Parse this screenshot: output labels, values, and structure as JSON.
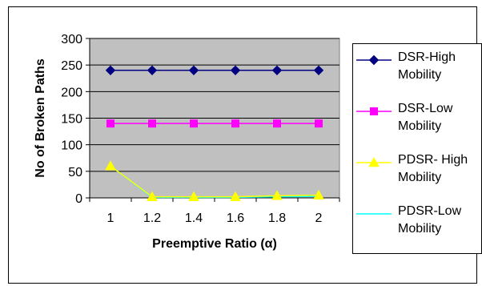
{
  "chart_data": {
    "type": "line",
    "xlabel": "Preemptive Ratio (α)",
    "ylabel": "No of Broken Paths",
    "x": [
      "1",
      "1.2",
      "1.4",
      "1.6",
      "1.8",
      "2"
    ],
    "y_ticks": [
      "0",
      "50",
      "100",
      "150",
      "200",
      "250",
      "300"
    ],
    "ylim": [
      0,
      300
    ],
    "grid": "horizontal",
    "plot_background": "#c0c0c0",
    "legend_position": "right",
    "series": [
      {
        "name": "DSR-High Mobility",
        "values": [
          240,
          240,
          240,
          240,
          240,
          240
        ],
        "color": "#000080",
        "marker": "diamond"
      },
      {
        "name": "DSR-Low Mobility",
        "values": [
          140,
          140,
          140,
          140,
          140,
          140
        ],
        "color": "#ff00ff",
        "marker": "square"
      },
      {
        "name": "PDSR- High Mobility",
        "values": [
          60,
          2,
          2,
          2,
          4,
          5
        ],
        "color": "#ffff00",
        "marker": "triangle"
      },
      {
        "name": "PDSR-Low Mobility",
        "values": [
          60,
          1,
          1,
          1,
          2,
          3
        ],
        "color": "#00ffff",
        "marker": "none"
      }
    ]
  }
}
